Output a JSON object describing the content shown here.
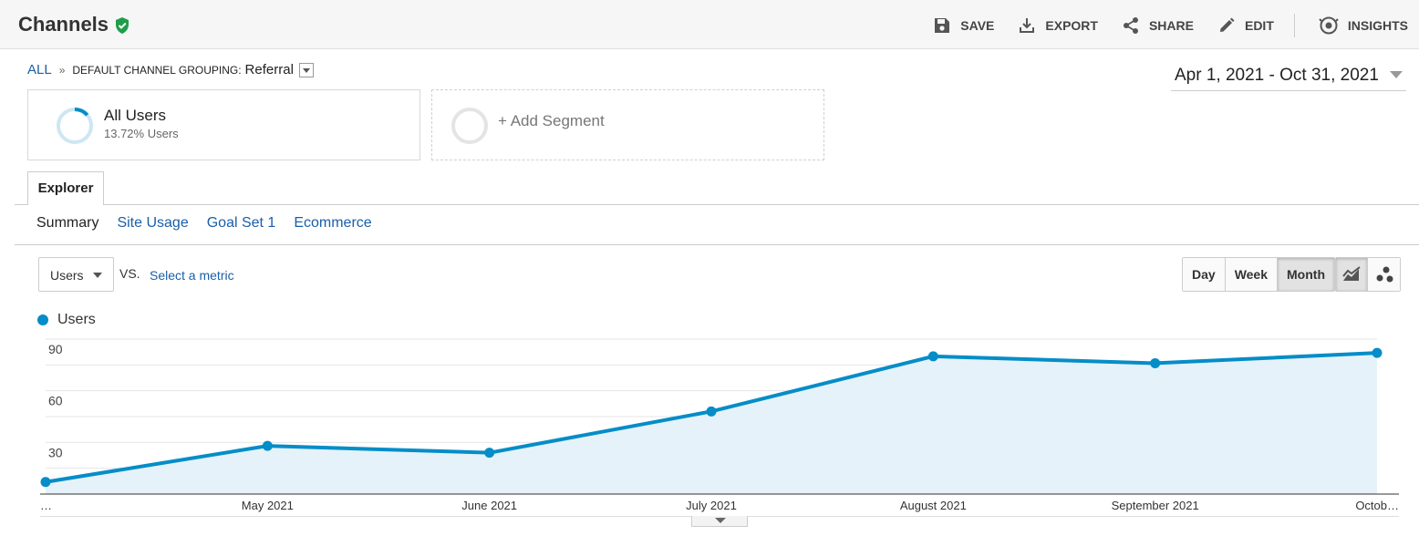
{
  "header": {
    "title": "Channels",
    "actions": {
      "save": "SAVE",
      "export": "EXPORT",
      "share": "SHARE",
      "edit": "EDIT",
      "insights": "INSIGHTS"
    }
  },
  "breadcrumb": {
    "all": "ALL",
    "separator": "»",
    "dimension": "DEFAULT CHANNEL GROUPING:",
    "value": "Referral"
  },
  "date_range": "Apr 1, 2021 - Oct 31, 2021",
  "segments": {
    "active": {
      "name": "All Users",
      "subtitle": "13.72% Users",
      "share": 0.1372
    },
    "add_label": "+ Add Segment"
  },
  "tabs": {
    "explorer": "Explorer"
  },
  "subtabs": [
    "Summary",
    "Site Usage",
    "Goal Set 1",
    "Ecommerce"
  ],
  "metric_selector": {
    "value": "Users",
    "vs_label": "VS.",
    "select_label": "Select a metric"
  },
  "granularity": {
    "options": [
      "Day",
      "Week",
      "Month"
    ],
    "selected": "Month"
  },
  "colors": {
    "series": "#058dc7",
    "link": "#1a5fa8",
    "verified": "#1e9e4a"
  },
  "chart_data": {
    "type": "area",
    "series": [
      {
        "name": "Users",
        "values": [
          7,
          28,
          24,
          48,
          80,
          76,
          82
        ]
      }
    ],
    "categories": [
      "…",
      "May 2021",
      "June 2021",
      "July 2021",
      "August 2021",
      "September 2021",
      "Octob…"
    ],
    "yticks": [
      30,
      60,
      90
    ],
    "ylim": [
      0,
      90
    ],
    "grid": true
  }
}
